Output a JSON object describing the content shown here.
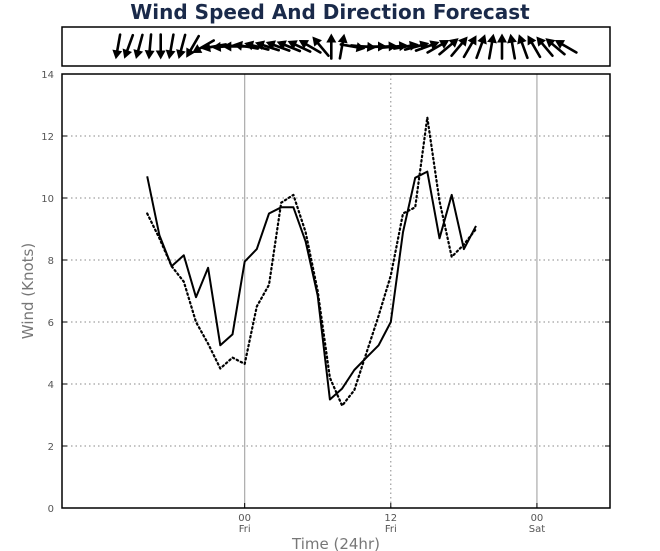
{
  "chart_data": {
    "type": "line",
    "title": "Wind Speed And Direction Forecast",
    "xlabel": "Time (24hr)",
    "ylabel": "Wind (Knots)",
    "ylim": [
      0,
      14
    ],
    "yticks": [
      0,
      2,
      4,
      6,
      8,
      10,
      12,
      14
    ],
    "xlim_hours": [
      -15,
      30
    ],
    "xticks": [
      {
        "hour": 0,
        "label": "00",
        "day": "Fri"
      },
      {
        "hour": 12,
        "label": "12",
        "day": "Fri"
      },
      {
        "hour": 24,
        "label": "00",
        "day": "Sat"
      }
    ],
    "grid": true,
    "series": [
      {
        "style": "solid",
        "x": [
          -8,
          -7,
          -6,
          -5,
          -4,
          -3,
          -2,
          -1,
          0,
          1,
          2,
          3,
          4,
          5,
          6,
          7,
          8,
          9,
          10,
          11,
          12,
          13,
          14,
          15,
          16,
          17,
          18,
          19,
          20,
          21,
          22
        ],
        "values": [
          10.7,
          8.8,
          7.8,
          8.15,
          6.8,
          7.75,
          5.25,
          5.6,
          7.95,
          8.35,
          9.5,
          9.7,
          9.7,
          8.6,
          6.85,
          3.5,
          3.85,
          4.45,
          4.85,
          5.25,
          6.0,
          8.9,
          10.65,
          10.85,
          8.7,
          10.1,
          8.35,
          9.1,
          null,
          null,
          null
        ],
        "color": "#000000"
      },
      {
        "style": "dotted",
        "x": [
          -8,
          -7,
          -6,
          -5,
          -4,
          -3,
          -2,
          -1,
          0,
          1,
          2,
          3,
          4,
          5,
          6,
          7,
          8,
          9,
          10,
          11,
          12,
          13,
          14,
          15,
          16,
          17,
          18,
          19,
          20,
          21,
          22
        ],
        "values": [
          9.5,
          8.7,
          7.8,
          7.3,
          6.0,
          5.3,
          4.5,
          4.85,
          4.65,
          6.5,
          7.2,
          9.85,
          10.1,
          8.9,
          7.0,
          4.2,
          3.3,
          3.8,
          5.0,
          6.2,
          7.5,
          9.5,
          9.7,
          12.6,
          9.9,
          8.1,
          8.5,
          9.0,
          null,
          null,
          null
        ],
        "color": "#000000"
      }
    ],
    "direction_arrows": [
      -170,
      -160,
      -165,
      -175,
      -180,
      -170,
      -165,
      -150,
      -120,
      -100,
      -95,
      -90,
      -80,
      -75,
      -72,
      -70,
      -68,
      -65,
      -60,
      -40,
      0,
      10,
      100,
      95,
      90,
      88,
      85,
      80,
      75,
      70,
      60,
      50,
      40,
      30,
      20,
      10,
      0,
      -10,
      -20,
      -30,
      -40,
      -50,
      -60
    ]
  }
}
